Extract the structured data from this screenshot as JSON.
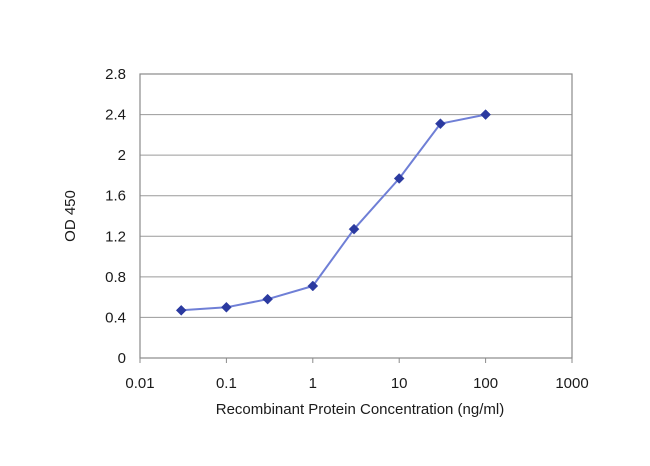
{
  "chart_data": {
    "type": "line",
    "title": "",
    "xlabel": "Recombinant Protein Concentration (ng/ml)",
    "ylabel": "OD 450",
    "xscale": "log",
    "xlim": [
      0.01,
      1000
    ],
    "ylim": [
      0,
      2.8
    ],
    "x_ticks": [
      0.01,
      0.1,
      1,
      10,
      100,
      1000
    ],
    "x_tick_labels": [
      "0.01",
      "0.1",
      "1",
      "10",
      "100",
      "1000"
    ],
    "y_ticks": [
      0,
      0.4,
      0.8,
      1.2,
      1.6,
      2,
      2.4,
      2.8
    ],
    "y_tick_labels": [
      "0",
      "0.4",
      "0.8",
      "1.2",
      "1.6",
      "2",
      "2.4",
      "2.8"
    ],
    "grid": "horizontal",
    "legend": "none",
    "series": [
      {
        "color": "#2b3aa0",
        "marker": "diamond",
        "x": [
          0.03,
          0.1,
          0.3,
          1,
          3,
          10,
          30,
          100
        ],
        "y": [
          0.47,
          0.5,
          0.58,
          0.71,
          1.27,
          1.77,
          2.31,
          2.4
        ]
      }
    ],
    "colors": {
      "line": "#6f7fd6",
      "marker": "#2b3aa0",
      "grid": "#9a9a9a",
      "frame": "#8a8a8a"
    }
  }
}
